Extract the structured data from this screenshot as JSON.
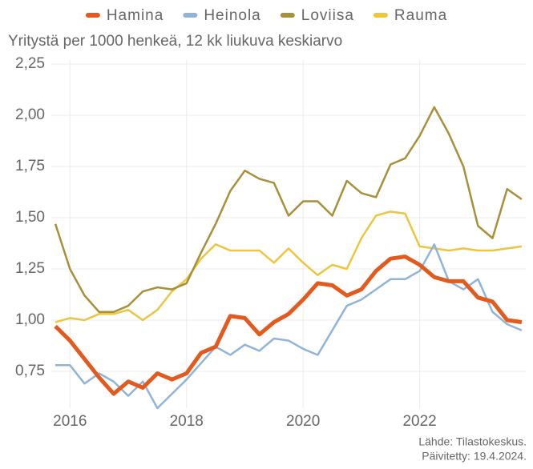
{
  "chart_data": {
    "type": "line",
    "subtitle": "Yritystä per 1000 henkeä, 12 kk liukuva keskiarvo",
    "source": [
      "Lähde: Tilastokeskus.",
      "Päivitetty: 19.4.2024."
    ],
    "x": [
      2015.75,
      2016,
      2016.25,
      2016.5,
      2016.75,
      2017,
      2017.25,
      2017.5,
      2017.75,
      2018,
      2018.25,
      2018.5,
      2018.75,
      2019,
      2019.25,
      2019.5,
      2019.75,
      2020,
      2020.25,
      2020.5,
      2020.75,
      2021,
      2021.25,
      2021.5,
      2021.75,
      2022,
      2022.25,
      2022.5,
      2022.75,
      2023,
      2023.25,
      2023.5,
      2023.75
    ],
    "series": [
      {
        "name": "Hamina",
        "color": "#e35a1e",
        "line_width": 5,
        "values": [
          0.97,
          0.9,
          0.81,
          0.72,
          0.64,
          0.7,
          0.67,
          0.74,
          0.71,
          0.74,
          0.84,
          0.87,
          1.02,
          1.01,
          0.93,
          0.99,
          1.03,
          1.1,
          1.18,
          1.17,
          1.12,
          1.15,
          1.24,
          1.3,
          1.31,
          1.27,
          1.21,
          1.19,
          1.19,
          1.11,
          1.09,
          1.0,
          0.99
        ]
      },
      {
        "name": "Heinola",
        "color": "#8fb4d8",
        "line_width": 2.5,
        "values": [
          0.78,
          0.78,
          0.69,
          0.74,
          0.7,
          0.63,
          0.7,
          0.57,
          0.64,
          0.71,
          0.79,
          0.87,
          0.83,
          0.88,
          0.85,
          0.91,
          0.9,
          0.86,
          0.83,
          0.95,
          1.07,
          1.1,
          1.15,
          1.2,
          1.2,
          1.24,
          1.37,
          1.19,
          1.15,
          1.2,
          1.04,
          0.98,
          0.95
        ]
      },
      {
        "name": "Loviisa",
        "color": "#a8903a",
        "line_width": 2.5,
        "values": [
          1.47,
          1.25,
          1.12,
          1.04,
          1.04,
          1.07,
          1.14,
          1.16,
          1.15,
          1.18,
          1.33,
          1.47,
          1.63,
          1.73,
          1.69,
          1.67,
          1.51,
          1.58,
          1.58,
          1.51,
          1.68,
          1.62,
          1.6,
          1.76,
          1.79,
          1.9,
          2.04,
          1.91,
          1.75,
          1.46,
          1.4,
          1.64,
          1.59
        ]
      },
      {
        "name": "Rauma",
        "color": "#ecc63e",
        "line_width": 2.5,
        "values": [
          0.99,
          1.01,
          1.0,
          1.03,
          1.03,
          1.05,
          1.0,
          1.05,
          1.14,
          1.2,
          1.3,
          1.37,
          1.34,
          1.34,
          1.34,
          1.28,
          1.35,
          1.28,
          1.22,
          1.27,
          1.25,
          1.4,
          1.51,
          1.53,
          1.52,
          1.36,
          1.35,
          1.34,
          1.35,
          1.34,
          1.34,
          1.35,
          1.36
        ]
      }
    ],
    "xlim": [
      2015.68,
      2023.82
    ],
    "xticks": [
      2016,
      2018,
      2020,
      2022
    ],
    "ylim": [
      0.57,
      2.27
    ],
    "yticks": [
      {
        "value": 0.75,
        "label": "0,75"
      },
      {
        "value": 1,
        "label": "1,00"
      },
      {
        "value": 1.25,
        "label": "1,25"
      },
      {
        "value": 1.5,
        "label": "1,50"
      },
      {
        "value": 1.75,
        "label": "1,75"
      },
      {
        "value": 2,
        "label": "2,00"
      },
      {
        "value": 2.25,
        "label": "2,25"
      }
    ],
    "grid": true,
    "legend": "top"
  }
}
